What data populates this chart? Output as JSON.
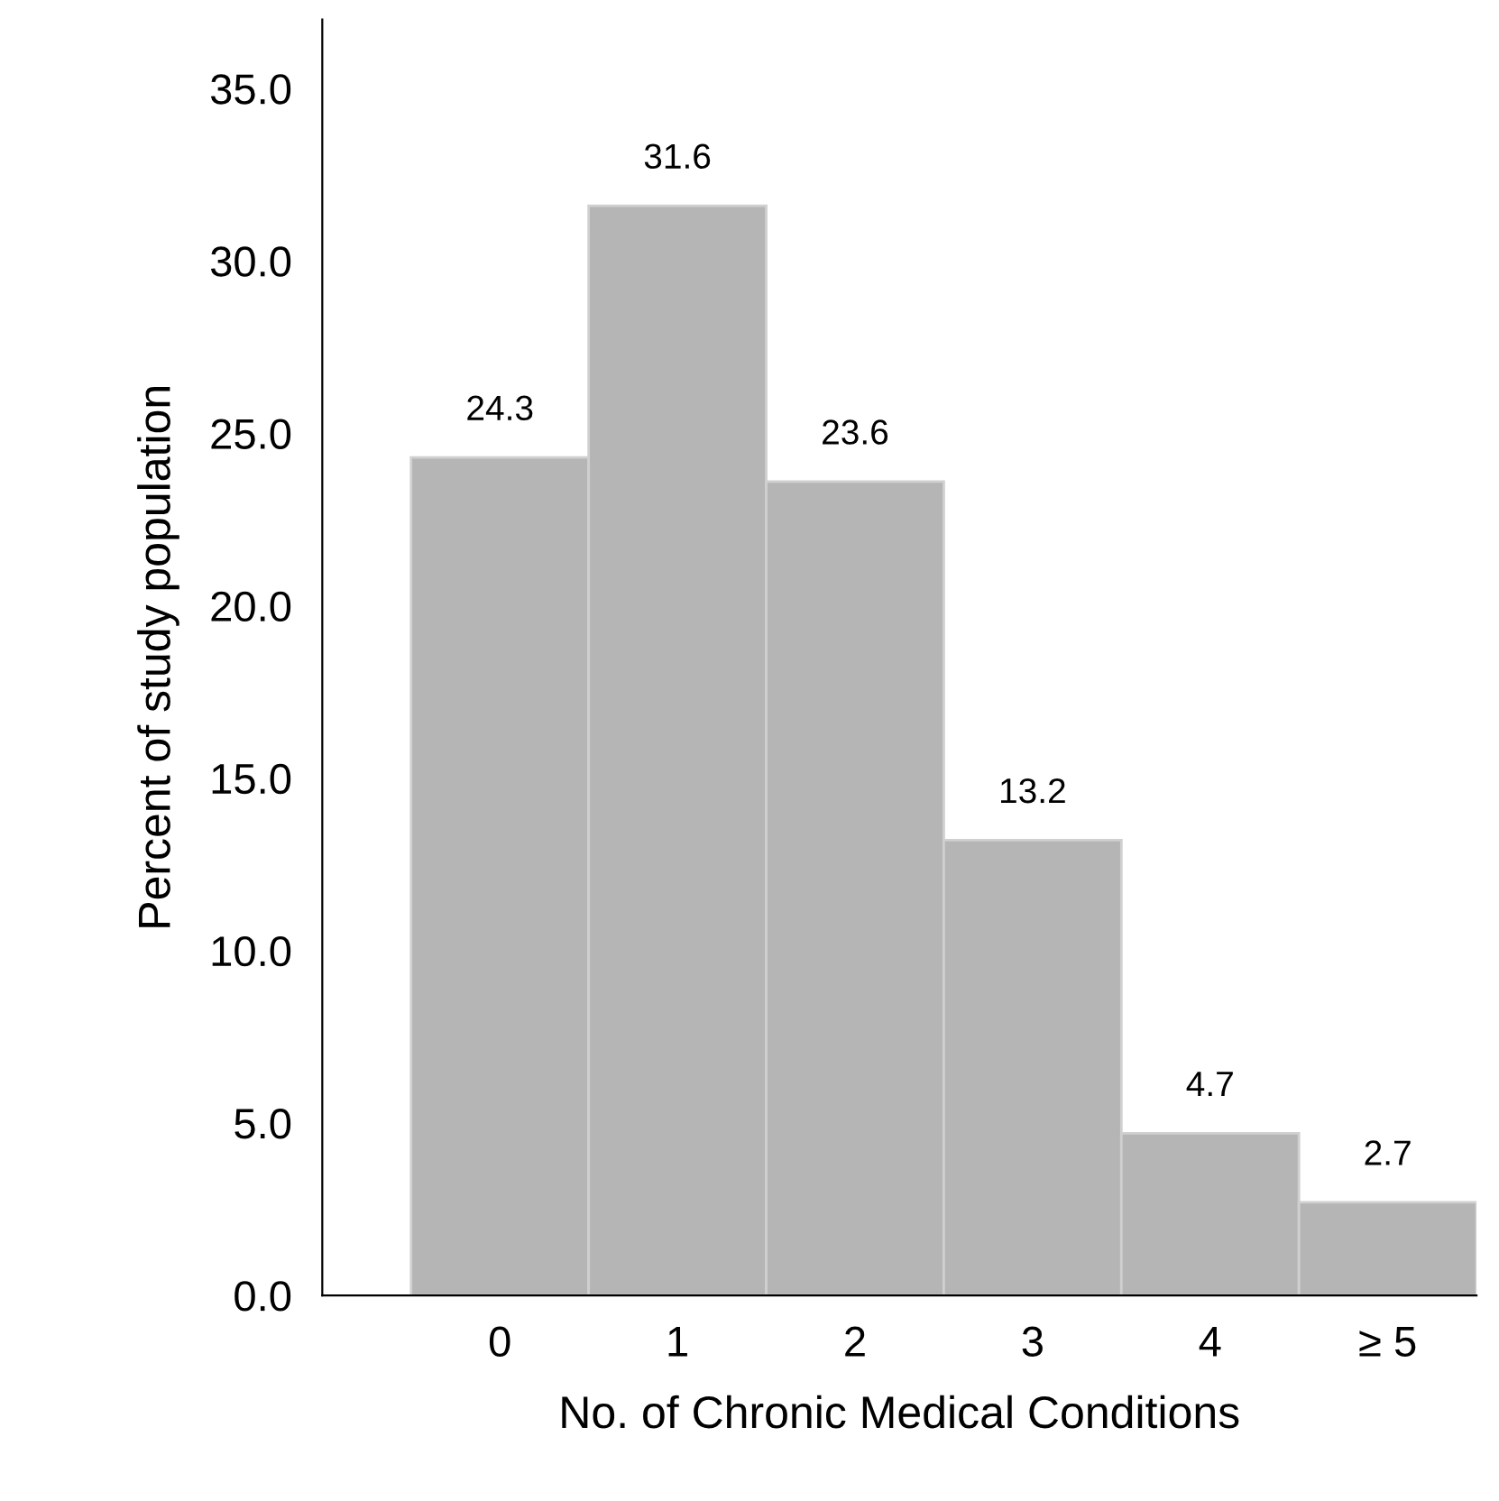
{
  "chart_data": {
    "type": "bar",
    "xlabel": "No. of Chronic Medical Conditions",
    "ylabel": "Percent of study population",
    "categories": [
      "0",
      "1",
      "2",
      "3",
      "4",
      "≥ 5"
    ],
    "values": [
      24.3,
      31.6,
      23.6,
      13.2,
      4.7,
      2.7
    ],
    "color": "#b5b5b5",
    "ylim": [
      0,
      37
    ],
    "yticks": [
      {
        "value": 0,
        "label": "0.0"
      },
      {
        "value": 5,
        "label": "5.0"
      },
      {
        "value": 10,
        "label": "10.0"
      },
      {
        "value": 15,
        "label": "15.0"
      },
      {
        "value": 20,
        "label": "20.0"
      },
      {
        "value": 25,
        "label": "25.0"
      },
      {
        "value": 30,
        "label": "30.0"
      },
      {
        "value": 35,
        "label": "35.0"
      }
    ],
    "data_labels": true,
    "grid": false,
    "legend": false
  }
}
